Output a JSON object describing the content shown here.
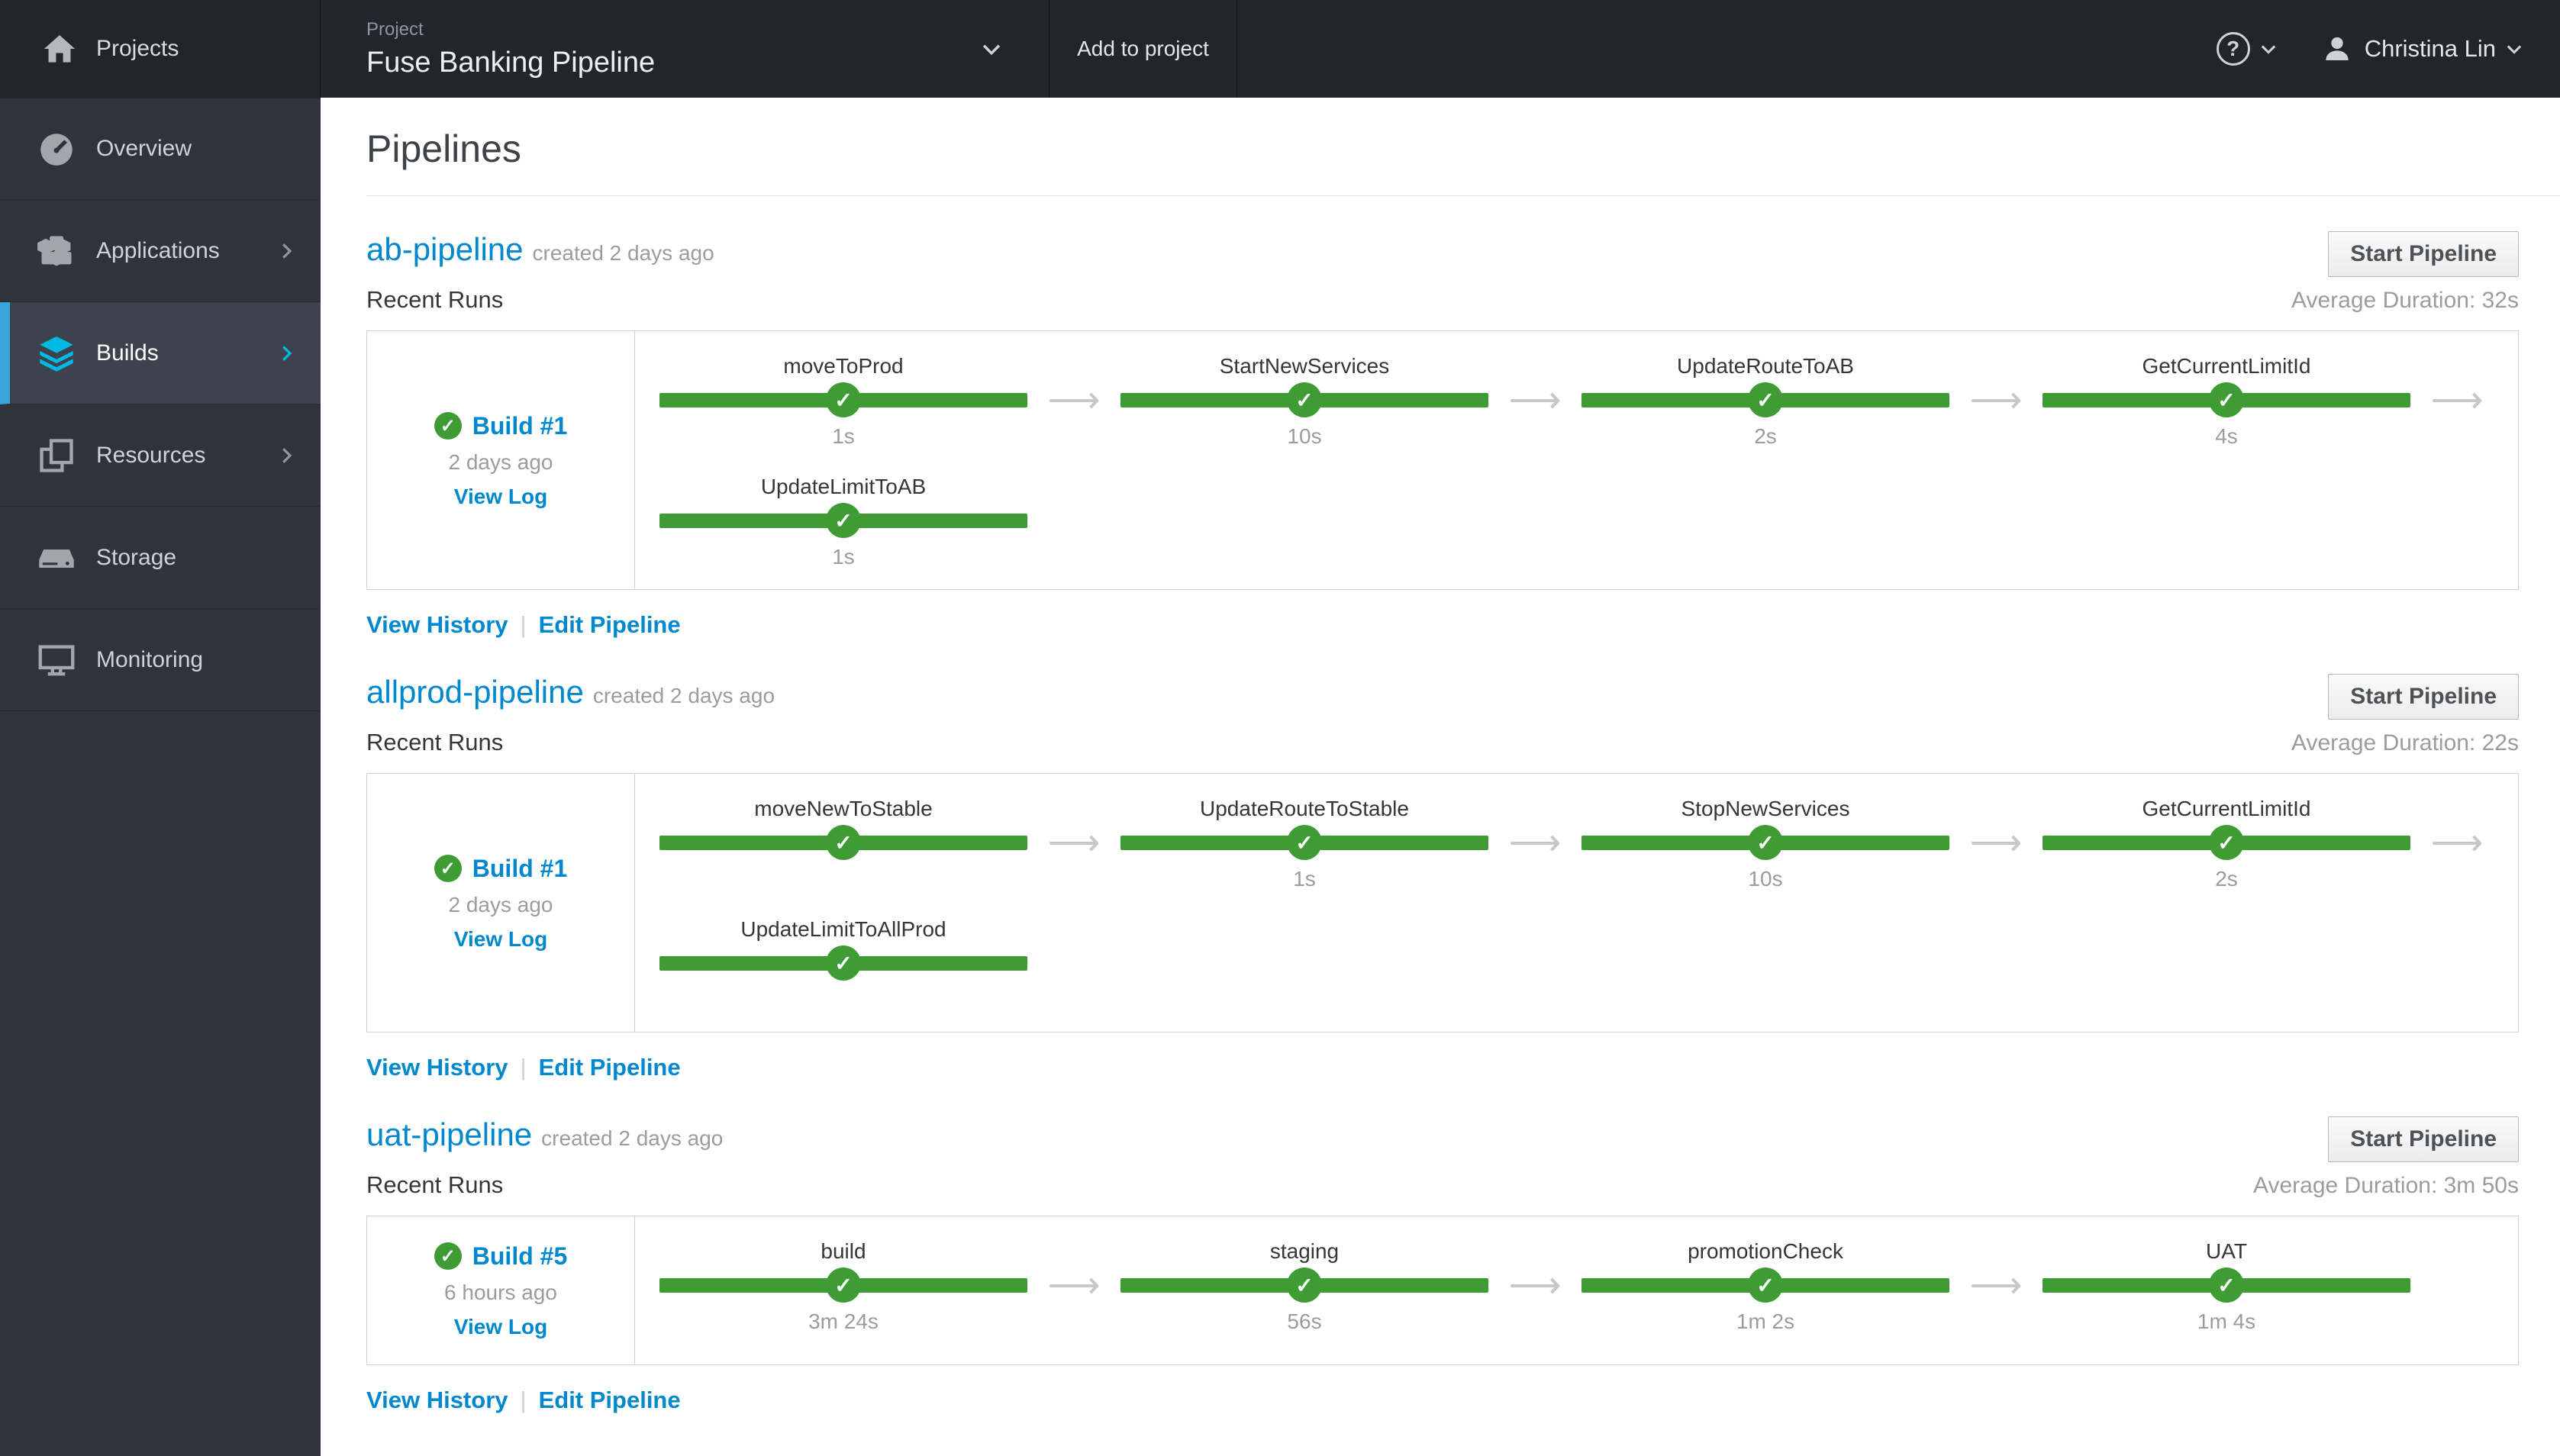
{
  "colors": {
    "link_blue": "#0088ce",
    "success_green": "#3f9c35",
    "nav_active_blue": "#39a5dc",
    "muted_gray": "#9c9c9c"
  },
  "masthead": {
    "projects_label": "Projects",
    "project_selector": {
      "label": "Project",
      "value": "Fuse Banking Pipeline"
    },
    "add_to_project_label": "Add to project",
    "help_glyph": "?",
    "user": {
      "name": "Christina Lin"
    }
  },
  "sidebar": {
    "items": [
      {
        "label": "Overview",
        "icon": "dashboard-icon",
        "has_submenu": false,
        "active": false
      },
      {
        "label": "Applications",
        "icon": "cubes-icon",
        "has_submenu": true,
        "active": false
      },
      {
        "label": "Builds",
        "icon": "layers-icon",
        "has_submenu": true,
        "active": true
      },
      {
        "label": "Resources",
        "icon": "copy-icon",
        "has_submenu": true,
        "active": false
      },
      {
        "label": "Storage",
        "icon": "storage-icon",
        "has_submenu": false,
        "active": false
      },
      {
        "label": "Monitoring",
        "icon": "monitor-icon",
        "has_submenu": false,
        "active": false
      }
    ]
  },
  "page": {
    "title": "Pipelines",
    "labels": {
      "recent_runs": "Recent Runs",
      "start_pipeline": "Start Pipeline",
      "view_history": "View History",
      "edit_pipeline": "Edit Pipeline",
      "separator": "|",
      "stage_arrow": "⟶",
      "check_glyph": "✓"
    },
    "pipelines": [
      {
        "name": "ab-pipeline",
        "created": "created 2 days ago",
        "average_duration": "Average Duration: 32s",
        "build": {
          "label": "Build #1",
          "status": "success",
          "age": "2 days ago",
          "view_log": "View Log"
        },
        "stage_rows": [
          [
            {
              "name": "moveToProd",
              "duration": "1s",
              "arrow_after": true
            },
            {
              "name": "StartNewServices",
              "duration": "10s",
              "arrow_after": true
            },
            {
              "name": "UpdateRouteToAB",
              "duration": "2s",
              "arrow_after": true
            },
            {
              "name": "GetCurrentLimitId",
              "duration": "4s",
              "arrow_after": true
            }
          ],
          [
            {
              "name": "UpdateLimitToAB",
              "duration": "1s",
              "arrow_after": false
            }
          ]
        ]
      },
      {
        "name": "allprod-pipeline",
        "created": "created 2 days ago",
        "average_duration": "Average Duration: 22s",
        "build": {
          "label": "Build #1",
          "status": "success",
          "age": "2 days ago",
          "view_log": "View Log"
        },
        "stage_rows": [
          [
            {
              "name": "moveNewToStable",
              "duration": "",
              "arrow_after": true
            },
            {
              "name": "UpdateRouteToStable",
              "duration": "1s",
              "arrow_after": true
            },
            {
              "name": "StopNewServices",
              "duration": "10s",
              "arrow_after": true
            },
            {
              "name": "GetCurrentLimitId",
              "duration": "2s",
              "arrow_after": true
            }
          ],
          [
            {
              "name": "UpdateLimitToAllProd",
              "duration": "",
              "arrow_after": false
            }
          ]
        ]
      },
      {
        "name": "uat-pipeline",
        "created": "created 2 days ago",
        "average_duration": "Average Duration: 3m 50s",
        "build": {
          "label": "Build #5",
          "status": "success",
          "age": "6 hours ago",
          "view_log": "View Log"
        },
        "stage_rows": [
          [
            {
              "name": "build",
              "duration": "3m 24s",
              "arrow_after": true
            },
            {
              "name": "staging",
              "duration": "56s",
              "arrow_after": true
            },
            {
              "name": "promotionCheck",
              "duration": "1m 2s",
              "arrow_after": true
            },
            {
              "name": "UAT",
              "duration": "1m 4s",
              "arrow_after": false
            }
          ]
        ]
      }
    ]
  }
}
